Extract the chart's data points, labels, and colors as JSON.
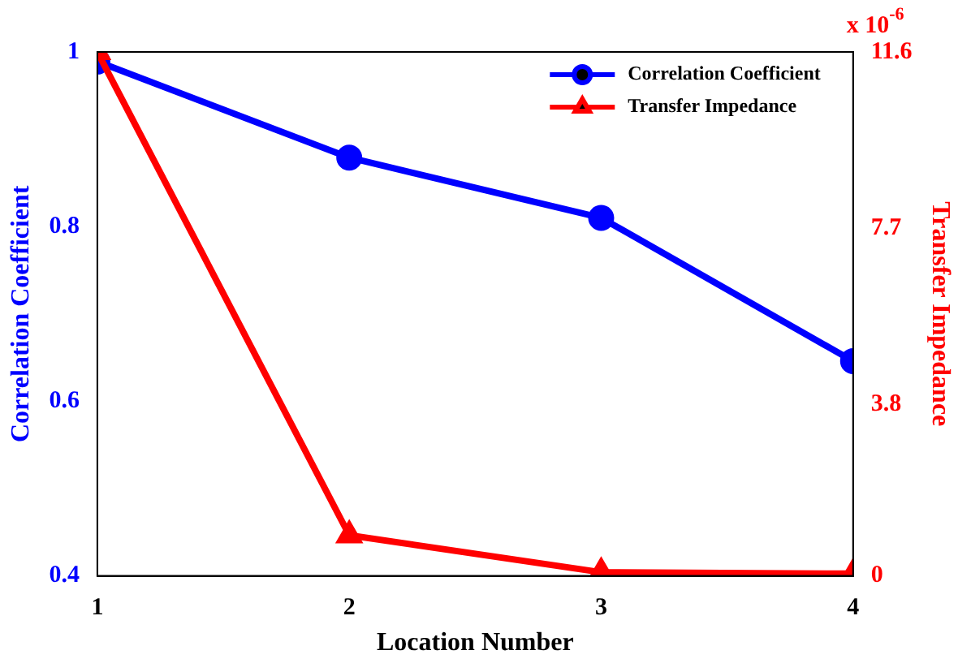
{
  "chart_data": {
    "type": "line",
    "xlabel": "Location Number",
    "ylabel": "Correlation Coefficient",
    "y2label": "Transfer Impedance",
    "x": [
      1,
      2,
      3,
      4
    ],
    "xlim": [
      1,
      4
    ],
    "xticks": [
      1,
      2,
      3,
      4
    ],
    "ylim": [
      0.4,
      1
    ],
    "yticks": [
      0.4,
      0.6,
      0.8,
      1
    ],
    "y2lim": [
      0,
      11.6
    ],
    "y2ticks": [
      0,
      3.8,
      7.7,
      11.6
    ],
    "series": [
      {
        "name": "Correlation Coefficient",
        "color": "#0000ff",
        "marker": "circle",
        "values": [
          0.989,
          0.879,
          0.81,
          0.646
        ]
      },
      {
        "name": "Transfer Impedance",
        "color": "#ff0000",
        "marker": "triangle",
        "axis": "y2",
        "values": [
          11.6,
          0.9,
          0.08,
          0.05
        ]
      }
    ],
    "annotations": [
      "x 10$^{-6}$"
    ],
    "legend": "top right",
    "grid": false,
    "line_style": "solid"
  }
}
